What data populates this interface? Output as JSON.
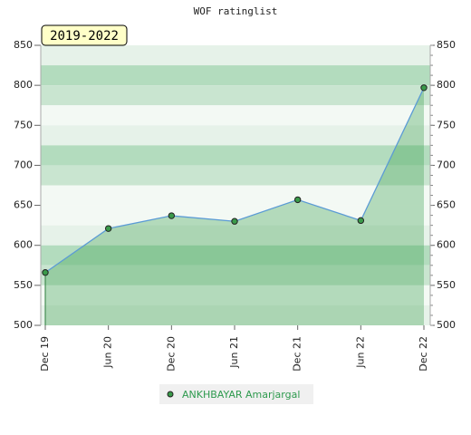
{
  "chart_data": {
    "type": "area",
    "title": "WOF ratinglist",
    "annotation": "2019-2022",
    "categories": [
      "Dec 19",
      "Jun 20",
      "Dec 20",
      "Jun 21",
      "Dec 21",
      "Jun 22",
      "Dec 22"
    ],
    "series": [
      {
        "name": "ANKHBAYAR Amarjargal",
        "color": "#5b9bd5",
        "values": [
          566,
          621,
          637,
          630,
          657,
          631,
          797
        ]
      }
    ],
    "ylim": [
      500,
      850
    ],
    "yticks": [
      500,
      550,
      600,
      650,
      700,
      750,
      800,
      850
    ],
    "y2lim": [
      500,
      850
    ],
    "y2ticks": [
      500,
      550,
      600,
      650,
      700,
      750,
      800,
      850
    ]
  }
}
